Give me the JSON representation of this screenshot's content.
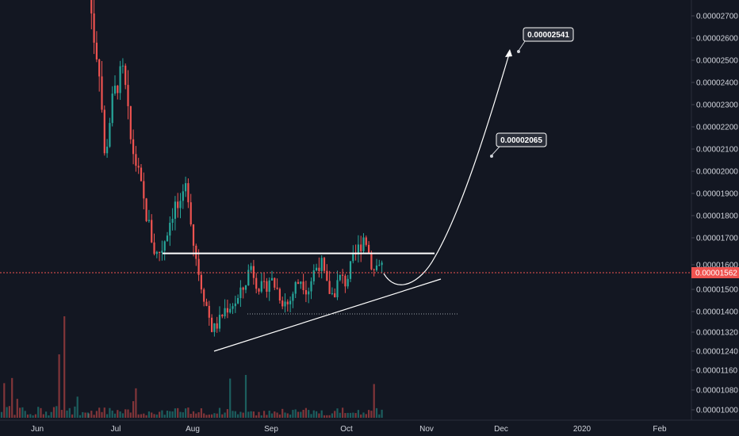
{
  "chart_data": {
    "type": "candlestick",
    "theme": {
      "background": "#131722",
      "up_color": "#26a69a",
      "down_color": "#ef5350",
      "grid": false
    },
    "y_axis": {
      "position": "right",
      "ticks": [
        "0.00002700",
        "0.00002600",
        "0.00002500",
        "0.00002400",
        "0.00002300",
        "0.00002200",
        "0.00002100",
        "0.00002000",
        "0.00001900",
        "0.00001800",
        "0.00001700",
        "0.00001600",
        "0.00001500",
        "0.00001400",
        "0.00001320",
        "0.00001240",
        "0.00001160",
        "0.00001080",
        "0.00001000"
      ]
    },
    "x_axis": {
      "ticks": [
        "Jun",
        "Jul",
        "Aug",
        "Sep",
        "Oct",
        "Nov",
        "Dec",
        "2020",
        "Feb"
      ]
    },
    "last_price": {
      "value": "0.00001562",
      "color": "#ef5350"
    },
    "annotations": {
      "targets": [
        "0.00002541",
        "0.00002065"
      ],
      "resistance_level": 1.63e-05,
      "support_level": 1.39e-05
    },
    "series_description": [
      {
        "period": "late Jun",
        "close_range": [
          2.05e-05,
          2.8e-05
        ],
        "trend": "falling"
      },
      {
        "period": "Jul",
        "close_range": [
          1.58e-05,
          2.45e-05
        ],
        "trend": "falling"
      },
      {
        "period": "early Aug",
        "close_range": [
          1.25e-05,
          1.5e-05
        ],
        "trend": "bottom"
      },
      {
        "period": "Sep",
        "close_range": [
          1.38e-05,
          1.63e-05
        ],
        "trend": "range"
      },
      {
        "period": "Oct",
        "close_range": [
          1.5e-05,
          1.78e-05
        ],
        "trend": "range"
      }
    ]
  }
}
